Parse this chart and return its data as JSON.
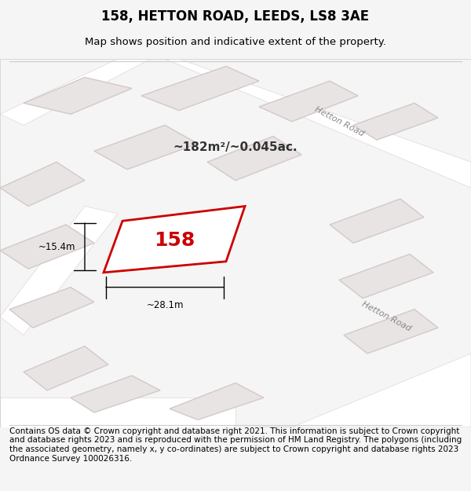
{
  "title": "158, HETTON ROAD, LEEDS, LS8 3AE",
  "subtitle": "Map shows position and indicative extent of the property.",
  "footer": "Contains OS data © Crown copyright and database right 2021. This information is subject to Crown copyright and database rights 2023 and is reproduced with the permission of HM Land Registry. The polygons (including the associated geometry, namely x, y co-ordinates) are subject to Crown copyright and database rights 2023 Ordnance Survey 100026316.",
  "area_text": "~182m²/~0.045ac.",
  "property_label": "158",
  "dim_width": "~28.1m",
  "dim_height": "~15.4m",
  "background_color": "#f5f5f5",
  "map_background": "#f0eeee",
  "road_color": "#ffffff",
  "building_fill": "#e8e4e4",
  "building_stroke": "#d4c8c8",
  "highlight_fill": "none",
  "highlight_stroke": "#cc0000",
  "road_label": "Hetton Road",
  "title_fontsize": 12,
  "subtitle_fontsize": 9.5,
  "footer_fontsize": 7.5
}
